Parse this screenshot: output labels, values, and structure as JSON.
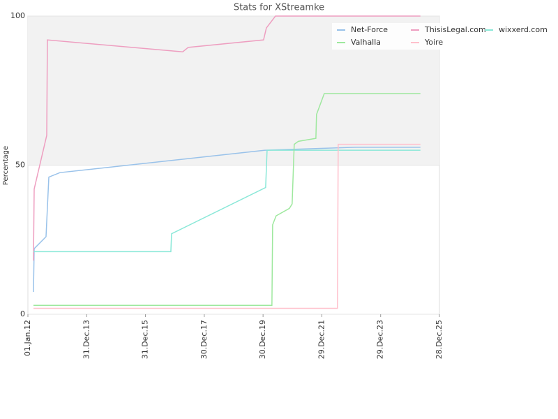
{
  "chart_data": {
    "type": "line",
    "title": "Stats for XStreamke",
    "y_label": "Percentage",
    "xlim": [
      "2012-01-01",
      "2025-12-28"
    ],
    "xticks": [
      {
        "value": "2012-01-01",
        "label": "01.Jan.12"
      },
      {
        "value": "2013-12-31",
        "label": "31.Dec.13"
      },
      {
        "value": "2015-12-31",
        "label": "31.Dec.15"
      },
      {
        "value": "2017-12-30",
        "label": "30.Dec.17"
      },
      {
        "value": "2019-12-30",
        "label": "30.Dec.19"
      },
      {
        "value": "2021-12-29",
        "label": "29.Dec.21"
      },
      {
        "value": "2023-12-29",
        "label": "29.Dec.23"
      },
      {
        "value": "2025-12-28",
        "label": "28.Dec.25"
      }
    ],
    "ylim": [
      0,
      100
    ],
    "yticks": [
      0,
      50,
      100
    ],
    "grid": true,
    "legend": "top-right",
    "series": [
      {
        "name": "Net-Force",
        "color": "#99c2ea",
        "x": [
          "2012-03-10",
          "2012-03-19",
          "2012-08-13",
          "2012-09-17",
          "2013-02-02",
          "2020-01-23",
          "2023-02-21",
          "2025-05-06"
        ],
        "values": [
          7.5,
          22,
          26,
          46,
          47.5,
          55,
          56,
          56
        ]
      },
      {
        "name": "ThisisLegal.com",
        "color": "#ee9ec0",
        "x": [
          "2012-03-10",
          "2012-03-19",
          "2012-08-22",
          "2012-08-30",
          "2017-04-06",
          "2017-06-14",
          "2020-01-05",
          "2020-02-09",
          "2020-06-01",
          "2025-05-06"
        ],
        "values": [
          18,
          42,
          60,
          92,
          88,
          89.5,
          92,
          96,
          100,
          100
        ]
      },
      {
        "name": "wixxerd.com",
        "color": "#8ae8d8",
        "x": [
          "2012-03-10",
          "2016-11-10",
          "2016-11-19",
          "2020-01-31",
          "2020-02-18",
          "2025-05-06"
        ],
        "values": [
          21,
          21,
          27,
          42.5,
          55,
          55
        ]
      },
      {
        "name": "Valhalla",
        "color": "#9ee89e",
        "x": [
          "2012-03-10",
          "2020-04-18",
          "2020-04-27",
          "2020-06-09",
          "2020-11-21",
          "2020-12-25",
          "2021-01-20",
          "2021-03-13",
          "2021-10-16",
          "2021-10-24",
          "2022-01-28",
          "2025-05-06"
        ],
        "values": [
          3,
          3,
          30,
          33,
          35.5,
          37,
          57,
          58,
          59,
          67,
          74,
          74
        ]
      },
      {
        "name": "Yoire",
        "color": "#ffc0cc",
        "x": [
          "2012-03-10",
          "2022-07-11",
          "2022-07-20",
          "2025-05-06"
        ],
        "values": [
          2,
          2,
          57,
          57
        ]
      }
    ]
  }
}
